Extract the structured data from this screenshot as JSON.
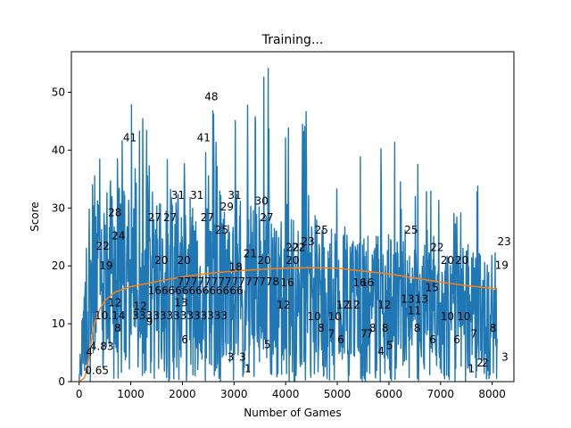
{
  "chart_data": {
    "type": "line",
    "title": "Training...",
    "xlabel": "Number of Games",
    "ylabel": "Score",
    "xlim": [
      -150,
      8420
    ],
    "ylim": [
      0,
      57
    ],
    "x_ticks": [
      0,
      1000,
      2000,
      3000,
      4000,
      5000,
      6000,
      7000,
      8000
    ],
    "x_tick_labels": [
      "0",
      "1000",
      "2000",
      "3000",
      "4000",
      "5000",
      "6000",
      "7000",
      "8000"
    ],
    "y_ticks": [
      0,
      10,
      20,
      30,
      40,
      50
    ],
    "y_tick_labels": [
      "0",
      "10",
      "20",
      "30",
      "40",
      "50"
    ],
    "grid": false,
    "colors": {
      "scores": "#1f77b4",
      "mean": "#ff7f0e"
    },
    "series": [
      {
        "role": "scores",
        "envelope_x": [
          0,
          100,
          200,
          300,
          400,
          600,
          800,
          1000,
          1500,
          2000,
          2500,
          3000,
          3500,
          4000,
          4500,
          5000,
          5500,
          6000,
          6500,
          7000,
          7500,
          8000,
          8100
        ],
        "envelope_max": [
          1,
          23,
          34,
          38,
          50,
          44,
          45,
          48,
          47,
          46,
          48,
          49,
          57,
          54,
          46,
          47,
          43,
          42,
          40,
          36,
          34,
          40,
          40
        ],
        "envelope_min": [
          0,
          0,
          0,
          0,
          0,
          0,
          0,
          0,
          0,
          0,
          0,
          0,
          0,
          0,
          0,
          0,
          0,
          0,
          0,
          0,
          0,
          0,
          0
        ],
        "dense_band_upper": [
          1,
          20,
          31,
          31,
          33,
          35,
          34,
          35,
          33,
          34,
          32,
          30,
          31,
          29,
          29,
          27,
          25,
          26,
          24,
          23,
          23,
          22,
          23
        ]
      },
      {
        "role": "mean",
        "x": [
          0,
          100,
          150,
          200,
          250,
          300,
          400,
          500,
          700,
          1000,
          1500,
          2000,
          2500,
          3000,
          3500,
          4000,
          4500,
          5000,
          5500,
          6000,
          6500,
          7000,
          7500,
          8000,
          8100
        ],
        "y": [
          0,
          0.65,
          2,
          4.83,
          8,
          10.14,
          12.5,
          14,
          15.5,
          16.4,
          17.3,
          18.1,
          18.7,
          19.1,
          19.4,
          19.6,
          19.7,
          19.6,
          19.1,
          18.6,
          17.9,
          17.2,
          16.6,
          16.1,
          16.0
        ]
      }
    ],
    "annotations": [
      {
        "text": "0.65",
        "x": 115,
        "y": 1.3
      },
      {
        "text": "4.83",
        "x": 210,
        "y": 5.5
      },
      {
        "text": "4",
        "x": 130,
        "y": 4.5
      },
      {
        "text": "8",
        "x": 680,
        "y": 8.6
      },
      {
        "text": "10.14",
        "x": 300,
        "y": 10.8
      },
      {
        "text": "33333333333333",
        "x": 1030,
        "y": 10.8
      },
      {
        "text": "9",
        "x": 1300,
        "y": 9.8
      },
      {
        "text": "12",
        "x": 560,
        "y": 13.0
      },
      {
        "text": "12",
        "x": 1050,
        "y": 12.4
      },
      {
        "text": "13",
        "x": 1840,
        "y": 13.0
      },
      {
        "text": "16666666666666",
        "x": 1330,
        "y": 15.1
      },
      {
        "text": "777777777777778",
        "x": 1900,
        "y": 16.6
      },
      {
        "text": "18",
        "x": 2900,
        "y": 19.2
      },
      {
        "text": "19",
        "x": 390,
        "y": 19.4
      },
      {
        "text": "20",
        "x": 1460,
        "y": 20.3
      },
      {
        "text": "20",
        "x": 1900,
        "y": 20.3
      },
      {
        "text": "20",
        "x": 3450,
        "y": 20.3
      },
      {
        "text": "20",
        "x": 4000,
        "y": 20.3
      },
      {
        "text": "21",
        "x": 3180,
        "y": 21.5
      },
      {
        "text": "22",
        "x": 325,
        "y": 22.8
      },
      {
        "text": "22",
        "x": 4000,
        "y": 22.6
      },
      {
        "text": "22",
        "x": 4120,
        "y": 22.6
      },
      {
        "text": "22",
        "x": 6800,
        "y": 22.6
      },
      {
        "text": "23",
        "x": 4300,
        "y": 23.6
      },
      {
        "text": "23",
        "x": 8100,
        "y": 23.6
      },
      {
        "text": "24",
        "x": 630,
        "y": 24.6
      },
      {
        "text": "25",
        "x": 2630,
        "y": 25.6
      },
      {
        "text": "25",
        "x": 4560,
        "y": 25.6
      },
      {
        "text": "25",
        "x": 6300,
        "y": 25.6
      },
      {
        "text": "27",
        "x": 1330,
        "y": 27.7
      },
      {
        "text": "27",
        "x": 1630,
        "y": 27.7
      },
      {
        "text": "27",
        "x": 2350,
        "y": 27.7
      },
      {
        "text": "27",
        "x": 3500,
        "y": 27.7
      },
      {
        "text": "28",
        "x": 560,
        "y": 28.6
      },
      {
        "text": "29",
        "x": 2730,
        "y": 29.6
      },
      {
        "text": "30",
        "x": 3400,
        "y": 30.6
      },
      {
        "text": "31",
        "x": 1780,
        "y": 31.6
      },
      {
        "text": "31",
        "x": 2150,
        "y": 31.6
      },
      {
        "text": "31",
        "x": 2880,
        "y": 31.6
      },
      {
        "text": "41",
        "x": 850,
        "y": 41.5
      },
      {
        "text": "41",
        "x": 2280,
        "y": 41.5
      },
      {
        "text": "48",
        "x": 2430,
        "y": 48.6
      },
      {
        "text": "6",
        "x": 1980,
        "y": 6.6
      },
      {
        "text": "3",
        "x": 2870,
        "y": 3.6
      },
      {
        "text": "3",
        "x": 3100,
        "y": 3.6
      },
      {
        "text": "1",
        "x": 3200,
        "y": 1.6
      },
      {
        "text": "5",
        "x": 3580,
        "y": 5.8
      },
      {
        "text": "12",
        "x": 3830,
        "y": 12.6
      },
      {
        "text": "16",
        "x": 3900,
        "y": 16.5
      },
      {
        "text": "10",
        "x": 4420,
        "y": 10.6
      },
      {
        "text": "8",
        "x": 4620,
        "y": 8.6
      },
      {
        "text": "10",
        "x": 4820,
        "y": 10.6
      },
      {
        "text": "7",
        "x": 4820,
        "y": 7.6
      },
      {
        "text": "6",
        "x": 5000,
        "y": 6.6
      },
      {
        "text": "12",
        "x": 4980,
        "y": 12.6
      },
      {
        "text": "12",
        "x": 5180,
        "y": 12.6
      },
      {
        "text": "16",
        "x": 5300,
        "y": 16.5
      },
      {
        "text": "16",
        "x": 5450,
        "y": 16.5
      },
      {
        "text": "7",
        "x": 5450,
        "y": 7.6
      },
      {
        "text": "7",
        "x": 5560,
        "y": 7.6
      },
      {
        "text": "8",
        "x": 5620,
        "y": 8.6
      },
      {
        "text": "12",
        "x": 5780,
        "y": 12.6
      },
      {
        "text": "4",
        "x": 5780,
        "y": 4.6
      },
      {
        "text": "8",
        "x": 5860,
        "y": 8.6
      },
      {
        "text": "5",
        "x": 5950,
        "y": 5.6
      },
      {
        "text": "13",
        "x": 6230,
        "y": 13.6
      },
      {
        "text": "11",
        "x": 6360,
        "y": 11.6
      },
      {
        "text": "13",
        "x": 6500,
        "y": 13.6
      },
      {
        "text": "8",
        "x": 6480,
        "y": 8.6
      },
      {
        "text": "15",
        "x": 6700,
        "y": 15.6
      },
      {
        "text": "6",
        "x": 6780,
        "y": 6.6
      },
      {
        "text": "10",
        "x": 7000,
        "y": 10.6
      },
      {
        "text": "10",
        "x": 7320,
        "y": 10.6
      },
      {
        "text": "6",
        "x": 7250,
        "y": 6.6
      },
      {
        "text": "7",
        "x": 7580,
        "y": 7.6
      },
      {
        "text": "20",
        "x": 7000,
        "y": 20.3
      },
      {
        "text": "20",
        "x": 7280,
        "y": 20.3
      },
      {
        "text": "1",
        "x": 7530,
        "y": 1.6
      },
      {
        "text": "2",
        "x": 7700,
        "y": 2.6
      },
      {
        "text": "2",
        "x": 7800,
        "y": 2.6
      },
      {
        "text": "8",
        "x": 7950,
        "y": 8.6
      },
      {
        "text": "3",
        "x": 8180,
        "y": 3.6
      },
      {
        "text": "19",
        "x": 8050,
        "y": 19.5
      }
    ]
  }
}
